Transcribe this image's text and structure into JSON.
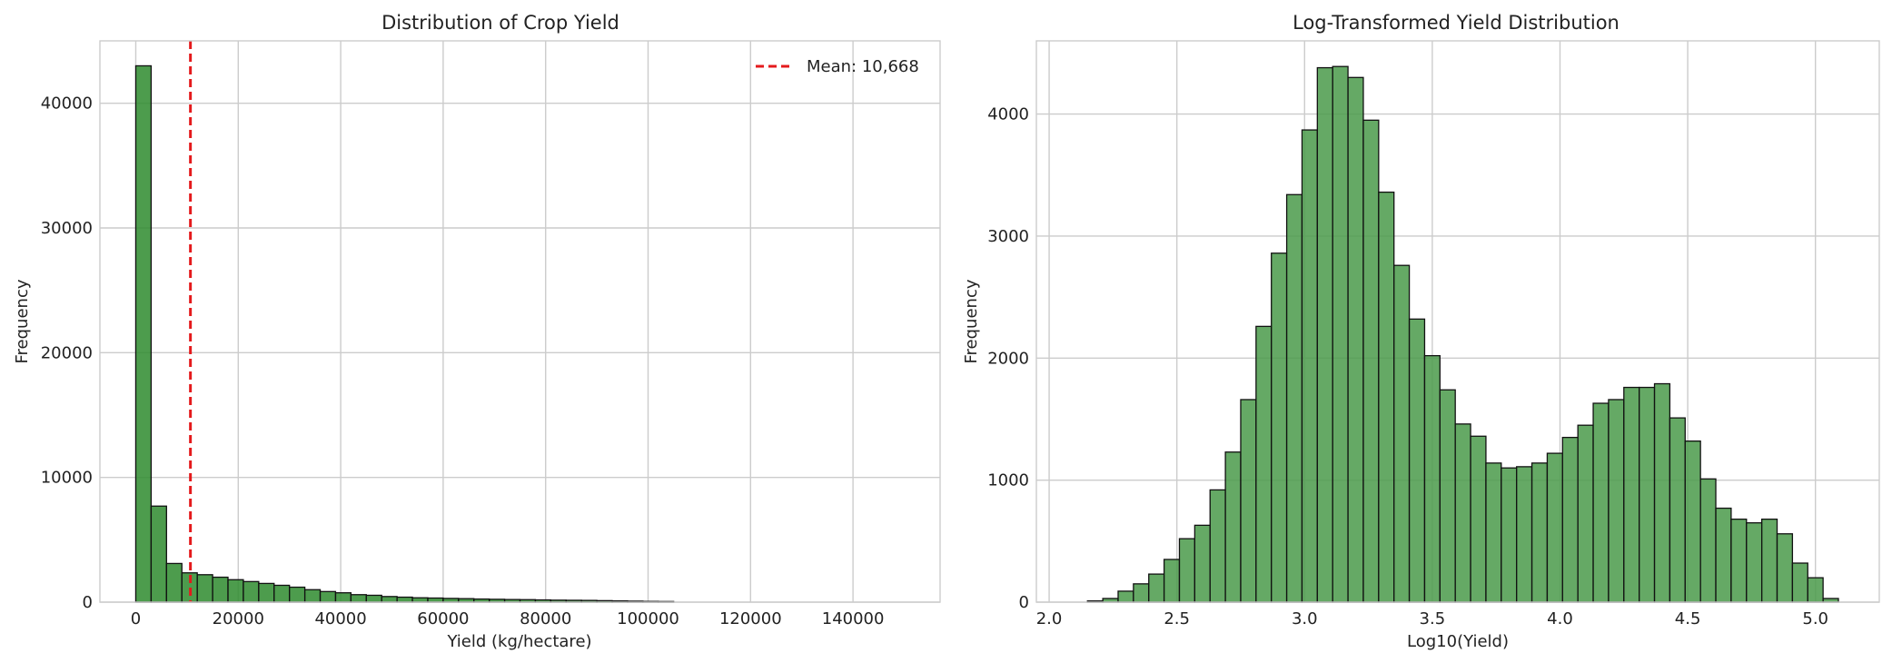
{
  "chart_data": [
    {
      "type": "bar",
      "title": "Distribution of Crop Yield",
      "xlabel": "Yield (kg/hectare)",
      "ylabel": "Frequency",
      "xlim": [
        -7000,
        157000
      ],
      "ylim": [
        0,
        45000
      ],
      "xticks": [
        0,
        20000,
        40000,
        60000,
        80000,
        100000,
        120000,
        140000
      ],
      "yticks": [
        0,
        10000,
        20000,
        30000,
        40000
      ],
      "grid": true,
      "bar_color": "#2e8b2e",
      "bin_start": 0,
      "bin_width": 3000,
      "series": [
        {
          "values": [
            43000,
            7700,
            3100,
            2350,
            2200,
            2000,
            1800,
            1650,
            1500,
            1350,
            1200,
            1000,
            850,
            750,
            600,
            550,
            450,
            400,
            350,
            330,
            300,
            280,
            250,
            230,
            210,
            200,
            180,
            160,
            150,
            140,
            120,
            100,
            80,
            60,
            50
          ]
        }
      ],
      "mean_line": {
        "value": 10668,
        "label": "Mean: 10,668",
        "color": "#e41a1c"
      },
      "legend_position": "top-right"
    },
    {
      "type": "bar",
      "title": "Log-Transformed Yield Distribution",
      "xlabel": "Log10(Yield)",
      "ylabel": "Frequency",
      "xlim": [
        1.95,
        5.25
      ],
      "ylim": [
        0,
        4600
      ],
      "xticks": [
        "2.0",
        "2.5",
        "3.0",
        "3.5",
        "4.0",
        "4.5",
        "5.0"
      ],
      "yticks": [
        0,
        1000,
        2000,
        3000,
        4000
      ],
      "grid": true,
      "bar_color": "#4a9a4a",
      "bin_start": 2.15,
      "bin_width": 0.06,
      "series": [
        {
          "values": [
            10,
            30,
            90,
            150,
            230,
            350,
            520,
            630,
            920,
            1230,
            1660,
            2260,
            2860,
            3340,
            3870,
            4380,
            4390,
            4300,
            3950,
            3360,
            2760,
            2320,
            2020,
            1740,
            1460,
            1360,
            1140,
            1100,
            1110,
            1140,
            1220,
            1350,
            1450,
            1630,
            1660,
            1760,
            1760,
            1790,
            1510,
            1320,
            1010,
            770,
            680,
            650,
            680,
            560,
            320,
            200,
            30
          ]
        }
      ]
    }
  ]
}
